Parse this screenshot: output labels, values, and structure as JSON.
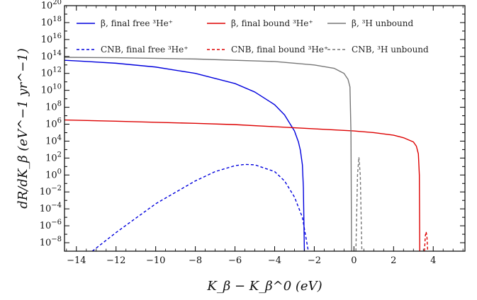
{
  "chart_data": {
    "type": "line",
    "xlabel": "K_β − K_β^0  (eV)",
    "ylabel": "dR/dK_β  (eV^−1 yr^−1)",
    "xlim": [
      -14.6,
      5.6
    ],
    "ylim_log10": [
      -9,
      20
    ],
    "y_scale": "log",
    "x_ticks": [
      -14,
      -12,
      -10,
      -8,
      -6,
      -4,
      -2,
      0,
      2,
      4
    ],
    "x_tick_labels": [
      "−14",
      "−12",
      "−10",
      "−8",
      "−6",
      "−4",
      "−2",
      "0",
      "2",
      "4"
    ],
    "y_tick_exponents": [
      -8,
      -6,
      -4,
      -2,
      0,
      2,
      4,
      6,
      8,
      10,
      12,
      14,
      16,
      18,
      20
    ],
    "legend_position": "top",
    "series": [
      {
        "name": "β, final free ³He⁺",
        "color": "#0000dd",
        "dash": "solid",
        "points": [
          [
            -14.6,
            13.55
          ],
          [
            -14,
            13.48
          ],
          [
            -12,
            13.2
          ],
          [
            -10,
            12.75
          ],
          [
            -8,
            12.0
          ],
          [
            -6,
            10.8
          ],
          [
            -5,
            9.8
          ],
          [
            -4,
            8.3
          ],
          [
            -3.5,
            7.1
          ],
          [
            -3,
            5.2
          ],
          [
            -2.8,
            3.9
          ],
          [
            -2.7,
            2.9
          ],
          [
            -2.6,
            1.2
          ],
          [
            -2.55,
            -1.5
          ],
          [
            -2.5,
            -9
          ]
        ]
      },
      {
        "name": "β, final bound ³He⁺",
        "color": "#dd0000",
        "dash": "solid",
        "points": [
          [
            -14.6,
            6.5
          ],
          [
            -12,
            6.35
          ],
          [
            -8,
            6.1
          ],
          [
            -6,
            5.95
          ],
          [
            -4,
            5.7
          ],
          [
            -2,
            5.45
          ],
          [
            0,
            5.2
          ],
          [
            1,
            5.0
          ],
          [
            2,
            4.7
          ],
          [
            2.5,
            4.4
          ],
          [
            3.0,
            3.9
          ],
          [
            3.15,
            3.4
          ],
          [
            3.25,
            2.5
          ],
          [
            3.3,
            0
          ],
          [
            3.32,
            -9
          ]
        ]
      },
      {
        "name": "β, ³H unbound",
        "color": "#777777",
        "dash": "solid",
        "points": [
          [
            -14.6,
            13.9
          ],
          [
            -12,
            13.85
          ],
          [
            -8,
            13.7
          ],
          [
            -4,
            13.4
          ],
          [
            -2,
            13.0
          ],
          [
            -1,
            12.6
          ],
          [
            -0.5,
            12.0
          ],
          [
            -0.3,
            11.3
          ],
          [
            -0.2,
            10.4
          ],
          [
            -0.15,
            5
          ],
          [
            -0.12,
            -9
          ]
        ]
      },
      {
        "name": "CNB, final free ³He⁺",
        "color": "#0000dd",
        "dash": "dashed",
        "points": [
          [
            -13.2,
            -9
          ],
          [
            -12,
            -6.8
          ],
          [
            -10,
            -3.4
          ],
          [
            -8,
            -0.7
          ],
          [
            -7,
            0.4
          ],
          [
            -6,
            1.1
          ],
          [
            -5.5,
            1.25
          ],
          [
            -5,
            1.2
          ],
          [
            -4,
            0.4
          ],
          [
            -3.5,
            -0.7
          ],
          [
            -3,
            -2.6
          ],
          [
            -2.6,
            -5.0
          ],
          [
            -2.3,
            -9
          ]
        ]
      },
      {
        "name": "CNB, final bound ³He⁺",
        "color": "#dd0000",
        "dash": "dashed",
        "points": [
          [
            3.56,
            -9
          ],
          [
            3.6,
            -7.2
          ],
          [
            3.64,
            -6.7
          ],
          [
            3.68,
            -7.2
          ],
          [
            3.72,
            -9
          ]
        ]
      },
      {
        "name": "CNB, ³H unbound",
        "color": "#777777",
        "dash": "dashed",
        "points": [
          [
            0.1,
            -9
          ],
          [
            0.18,
            0
          ],
          [
            0.25,
            2.1
          ],
          [
            0.32,
            0
          ],
          [
            0.4,
            -9
          ]
        ]
      }
    ]
  },
  "legend": {
    "row1": [
      {
        "label": "β, final free ³He⁺",
        "color": "#0000dd",
        "dash": "solid"
      },
      {
        "label": "β, final bound ³He⁺",
        "color": "#dd0000",
        "dash": "solid"
      },
      {
        "label": "β, ³H unbound",
        "color": "#777777",
        "dash": "solid"
      }
    ],
    "row2": [
      {
        "label": "CNB, final free ³He⁺",
        "color": "#0000dd",
        "dash": "dashed"
      },
      {
        "label": "CNB, final bound ³He⁺",
        "color": "#dd0000",
        "dash": "dashed"
      },
      {
        "label": "CNB, ³H unbound",
        "color": "#777777",
        "dash": "dashed"
      }
    ]
  }
}
